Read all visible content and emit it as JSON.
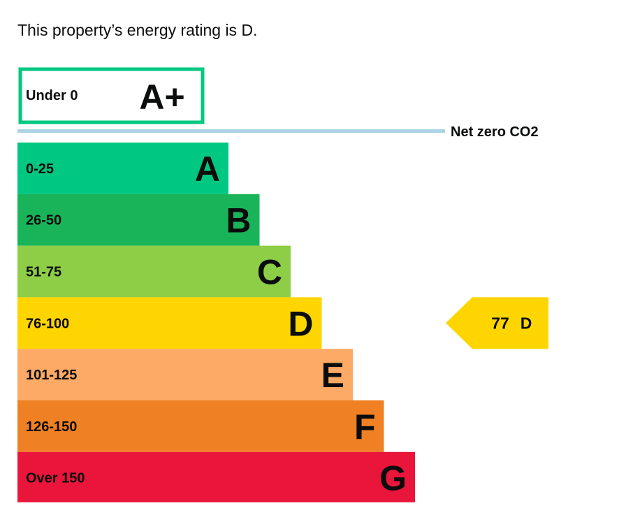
{
  "heading": "This property’s energy rating is D.",
  "chart_data": {
    "type": "bar",
    "title": "This property’s energy rating is D.",
    "net_zero": {
      "range": "Under 0",
      "letter": "A+",
      "color": "#00c781",
      "label": "Net zero CO2",
      "line_color": "#aad4e6"
    },
    "bands": [
      {
        "range": "0-25",
        "letter": "A",
        "color": "#00c781"
      },
      {
        "range": "26-50",
        "letter": "B",
        "color": "#19b459"
      },
      {
        "range": "51-75",
        "letter": "C",
        "color": "#8dce46"
      },
      {
        "range": "76-100",
        "letter": "D",
        "color": "#ffd500"
      },
      {
        "range": "101-125",
        "letter": "E",
        "color": "#fcaa65"
      },
      {
        "range": "126-150",
        "letter": "F",
        "color": "#ef8023"
      },
      {
        "range": "Over 150",
        "letter": "G",
        "color": "#e9153b"
      }
    ],
    "current": {
      "score": "77",
      "letter": "D",
      "band": "D",
      "color": "#ffd500"
    }
  }
}
